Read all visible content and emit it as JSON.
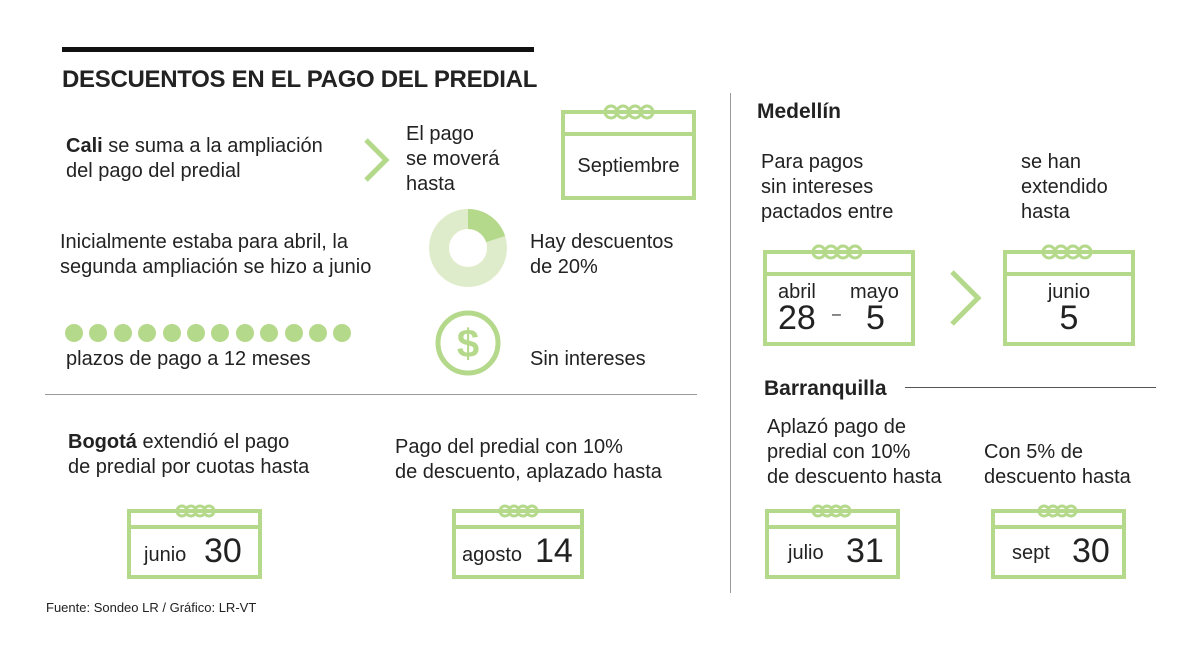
{
  "title": "DESCUENTOS EN EL PAGO DEL PREDIAL",
  "colors": {
    "accent": "#b5d98b",
    "accent_light": "#dfeccb",
    "text": "#222222",
    "rule": "#999999"
  },
  "cali": {
    "city": "Cali",
    "intro_rest1": " se suma a la ampliación",
    "intro_line2": "del pago del predial",
    "moved_line1": "El pago",
    "moved_line2": "se moverá",
    "moved_line3": "hasta",
    "calendar_word": "Septiembre",
    "initial_line1": "Inicialmente estaba para abril, la",
    "initial_line2": "segunda ampliación se hizo a junio",
    "discount_line1": "Hay descuentos",
    "discount_line2": "de 20%",
    "discount_fraction": 0.2,
    "installments_count": 12,
    "installments_label": "plazos de pago a 12 meses",
    "no_interest": "Sin intereses",
    "dollar_icon": "dollar-coin-icon"
  },
  "bogota": {
    "city": "Bogotá",
    "line1_rest": " extendió el pago",
    "line2": "de predial por cuotas hasta",
    "cal1_word": "junio",
    "cal1_num": "30",
    "p2_line1": "Pago del predial con 10%",
    "p2_line2": "de descuento, aplazado hasta",
    "cal2_word": "agosto",
    "cal2_num": "14"
  },
  "medellin": {
    "heading": "Medellín",
    "text_line1": "Para pagos",
    "text_line2": "sin intereses",
    "text_line3": "pactados entre",
    "extended_line1": "se han",
    "extended_line2": "extendido",
    "extended_line3": "hasta",
    "from_month": "abril",
    "from_day": "28",
    "dash": "–",
    "to_month": "mayo",
    "to_day": "5",
    "new_month": "junio",
    "new_day": "5"
  },
  "barranquilla": {
    "heading": "Barranquilla",
    "p1_line1": "Aplazó pago de",
    "p1_line2": "predial con 10%",
    "p1_line3": "de descuento hasta",
    "cal1_word": "julio",
    "cal1_num": "31",
    "p2_line1": "Con 5% de",
    "p2_line2": "descuento hasta",
    "cal2_word": "sept",
    "cal2_num": "30"
  },
  "source": "Fuente: Sondeo LR / Gráfico: LR-VT"
}
